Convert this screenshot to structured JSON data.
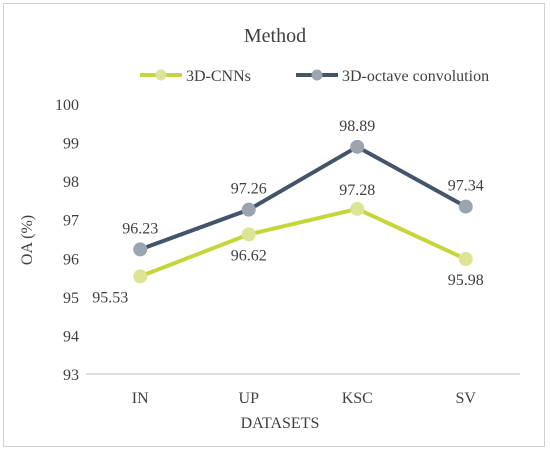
{
  "chart_data": {
    "type": "line",
    "title": "Method",
    "xlabel": "DATASETS",
    "ylabel": "OA (%)",
    "categories": [
      "IN",
      "UP",
      "KSC",
      "SV"
    ],
    "ylim": [
      93,
      100
    ],
    "yticks": [
      93,
      94,
      95,
      96,
      97,
      98,
      99,
      100
    ],
    "grid": false,
    "legend_position": "top",
    "series": [
      {
        "name": "3D-CNNs",
        "values": [
          95.53,
          96.62,
          97.28,
          95.98
        ],
        "labels": [
          "95.53",
          "96.62",
          "97.28",
          "95.98"
        ],
        "line_color": "#c5d63b",
        "marker_color": "#dce596"
      },
      {
        "name": "3D-octave convolution",
        "values": [
          96.23,
          97.26,
          98.89,
          97.34
        ],
        "labels": [
          "96.23",
          "97.26",
          "98.89",
          "97.34"
        ],
        "line_color": "#44546a",
        "marker_color": "#9aa5b0"
      }
    ]
  }
}
